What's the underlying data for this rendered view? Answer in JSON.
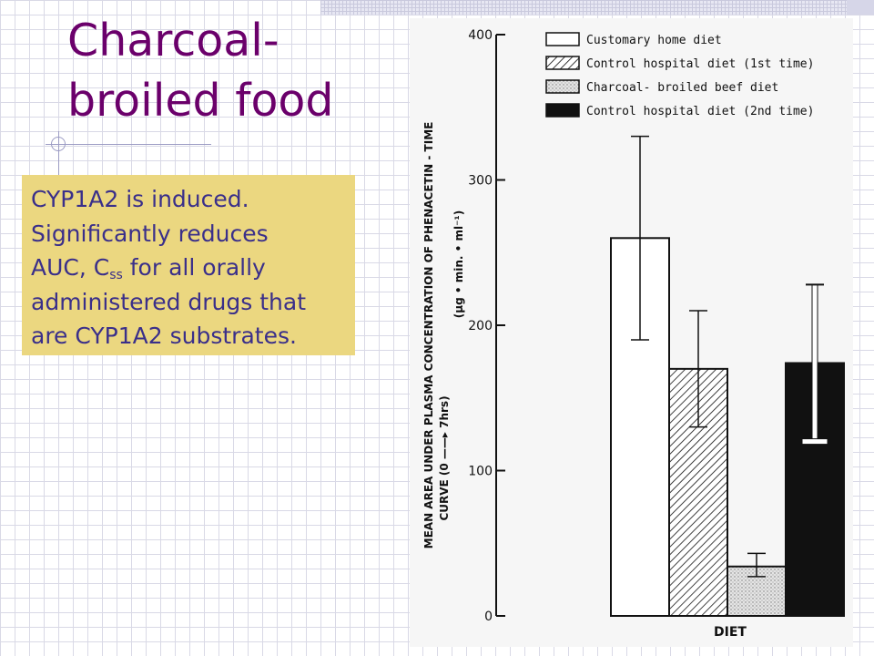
{
  "slide": {
    "title_lines": [
      "Charcoal-",
      "broiled food"
    ],
    "note": {
      "line1": "CYP1A2 is induced.",
      "line2": "Significantly reduces",
      "line3_pre": "AUC, C",
      "line3_sub": "ss",
      "line3_post": " for all orally",
      "line4": "administered drugs that",
      "line5": "are CYP1A2 substrates."
    }
  },
  "colors": {
    "title": "#6b006b",
    "note_bg": "#ebd780",
    "note_text": "#3a2f8a"
  },
  "chart_data": {
    "type": "bar",
    "ylabel_line1": "MEAN AREA UNDER PLASMA CONCENTRATION OF PHENACETIN - TIME",
    "ylabel_line2": "CURVE (0 ——▸ 7hrs)",
    "ylabel_units": "(μg • min. • ml⁻¹)",
    "xlabel": "DIET",
    "ylim": [
      0,
      400
    ],
    "yticks": [
      0,
      100,
      200,
      300,
      400
    ],
    "legend_position": "top",
    "series": [
      {
        "name": "Customary home diet",
        "value": 260,
        "error_low": 190,
        "error_high": 330,
        "pattern": "empty"
      },
      {
        "name": "Control hospital diet (1st time)",
        "value": 170,
        "error_low": 130,
        "error_high": 210,
        "pattern": "hatched"
      },
      {
        "name": "Charcoal- broiled beef diet",
        "value": 34,
        "error_low": 27,
        "error_high": 43,
        "pattern": "stippled"
      },
      {
        "name": "Control hospital diet (2nd time)",
        "value": 174,
        "error_low": 120,
        "error_high": 228,
        "pattern": "solid"
      }
    ]
  }
}
